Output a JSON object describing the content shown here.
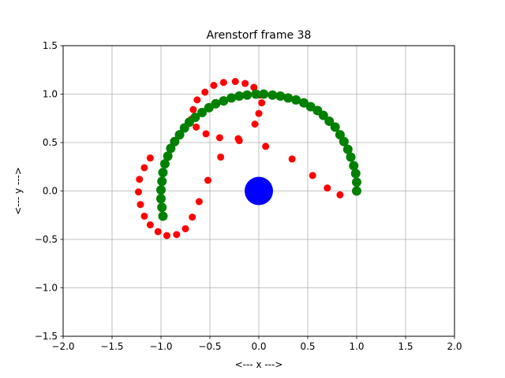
{
  "chart_data": {
    "type": "scatter",
    "title": "Arenstorf frame 38",
    "xlabel": "<---  x  --->",
    "ylabel": "<---  y  --->",
    "xlim": [
      -2.0,
      2.0
    ],
    "ylim": [
      -1.5,
      1.5
    ],
    "xticks": [
      -2.0,
      -1.5,
      -1.0,
      -0.5,
      0.0,
      0.5,
      1.0,
      1.5,
      2.0
    ],
    "yticks": [
      -1.5,
      -1.0,
      -0.5,
      0.0,
      0.5,
      1.0,
      1.5
    ],
    "xtick_labels": [
      "−2.0",
      "−1.5",
      "−1.0",
      "−0.5",
      "0.0",
      "0.5",
      "1.0",
      "1.5",
      "2.0"
    ],
    "ytick_labels": [
      "−1.5",
      "−1.0",
      "−0.5",
      "0.0",
      "0.5",
      "1.0",
      "1.5"
    ],
    "grid": true,
    "series": [
      {
        "color": "#ff0000",
        "marker": "small-circle",
        "points": [
          [
            1.0,
            0.0
          ],
          [
            0.83,
            -0.04
          ],
          [
            0.7,
            0.03
          ],
          [
            0.55,
            0.16
          ],
          [
            0.34,
            0.33
          ],
          [
            0.07,
            0.46
          ],
          [
            -0.2,
            0.52
          ],
          [
            -0.21,
            0.54
          ],
          [
            -0.04,
            0.69
          ],
          [
            0.0,
            0.8
          ],
          [
            0.03,
            0.91
          ],
          [
            0.01,
            0.99
          ],
          [
            -0.05,
            1.07
          ],
          [
            -0.14,
            1.11
          ],
          [
            -0.24,
            1.13
          ],
          [
            -0.36,
            1.12
          ],
          [
            -0.46,
            1.09
          ],
          [
            -0.55,
            1.02
          ],
          [
            -0.63,
            0.94
          ],
          [
            -0.67,
            0.84
          ],
          [
            -0.69,
            0.74
          ],
          [
            -0.64,
            0.66
          ],
          [
            -0.54,
            0.59
          ],
          [
            -0.4,
            0.55
          ],
          [
            -0.39,
            0.35
          ],
          [
            -0.52,
            0.11
          ],
          [
            -0.61,
            -0.11
          ],
          [
            -0.68,
            -0.27
          ],
          [
            -0.75,
            -0.39
          ],
          [
            -0.84,
            -0.45
          ],
          [
            -0.94,
            -0.46
          ],
          [
            -1.03,
            -0.42
          ],
          [
            -1.11,
            -0.35
          ],
          [
            -1.17,
            -0.26
          ],
          [
            -1.21,
            -0.14
          ],
          [
            -1.23,
            -0.01
          ],
          [
            -1.22,
            0.12
          ],
          [
            -1.17,
            0.24
          ],
          [
            -1.11,
            0.34
          ]
        ]
      },
      {
        "color": "#008000",
        "marker": "large-circle",
        "points": [
          [
            1.0,
            0.0
          ],
          [
            1.0,
            0.09
          ],
          [
            0.99,
            0.18
          ],
          [
            0.97,
            0.26
          ],
          [
            0.94,
            0.35
          ],
          [
            0.91,
            0.43
          ],
          [
            0.87,
            0.51
          ],
          [
            0.83,
            0.58
          ],
          [
            0.78,
            0.66
          ],
          [
            0.72,
            0.72
          ],
          [
            0.66,
            0.78
          ],
          [
            0.6,
            0.83
          ],
          [
            0.53,
            0.87
          ],
          [
            0.46,
            0.91
          ],
          [
            0.38,
            0.94
          ],
          [
            0.3,
            0.96
          ],
          [
            0.22,
            0.98
          ],
          [
            0.14,
            0.99
          ],
          [
            0.05,
            1.0
          ],
          [
            -0.03,
            1.0
          ],
          [
            -0.12,
            0.99
          ],
          [
            -0.2,
            0.98
          ],
          [
            -0.28,
            0.96
          ],
          [
            -0.36,
            0.93
          ],
          [
            -0.44,
            0.9
          ],
          [
            -0.51,
            0.86
          ],
          [
            -0.58,
            0.81
          ],
          [
            -0.65,
            0.76
          ],
          [
            -0.71,
            0.71
          ],
          [
            -0.76,
            0.65
          ],
          [
            -0.81,
            0.58
          ],
          [
            -0.86,
            0.51
          ],
          [
            -0.9,
            0.44
          ],
          [
            -0.93,
            0.36
          ],
          [
            -0.96,
            0.28
          ],
          [
            -0.98,
            0.19
          ],
          [
            -0.99,
            0.1
          ],
          [
            -1.0,
            0.01
          ],
          [
            -1.0,
            -0.08
          ],
          [
            -0.99,
            -0.17
          ],
          [
            -0.98,
            -0.26
          ]
        ]
      },
      {
        "color": "#0000ff",
        "marker": "big-circle",
        "points": [
          [
            0.0,
            0.0
          ]
        ]
      }
    ]
  }
}
